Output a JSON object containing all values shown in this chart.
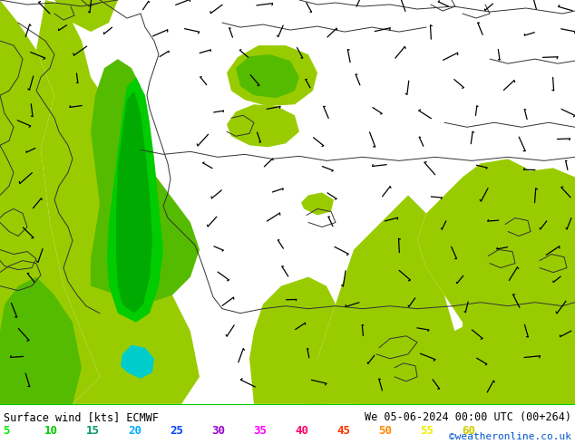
{
  "title_left": "Surface wind [kts] ECMWF",
  "title_right": "We 05-06-2024 00:00 UTC (00+264)",
  "credit": "©weatheronline.co.uk",
  "legend_values": [
    5,
    10,
    15,
    20,
    25,
    30,
    35,
    40,
    45,
    50,
    55,
    60
  ],
  "legend_label_colors": [
    "#00ee00",
    "#00cc00",
    "#009966",
    "#00aaff",
    "#0044ff",
    "#9900cc",
    "#ff00ff",
    "#ff0066",
    "#ff3300",
    "#ff8800",
    "#eeee00",
    "#cccc00"
  ],
  "bg_yellow": "#d4d400",
  "light_green": "#99cc00",
  "mid_green": "#55bb00",
  "dark_green": "#00aa00",
  "bright_green": "#00cc00",
  "cyan_color": "#00cccc",
  "coast_color": "#333333",
  "figsize": [
    6.34,
    4.9
  ],
  "dpi": 100
}
